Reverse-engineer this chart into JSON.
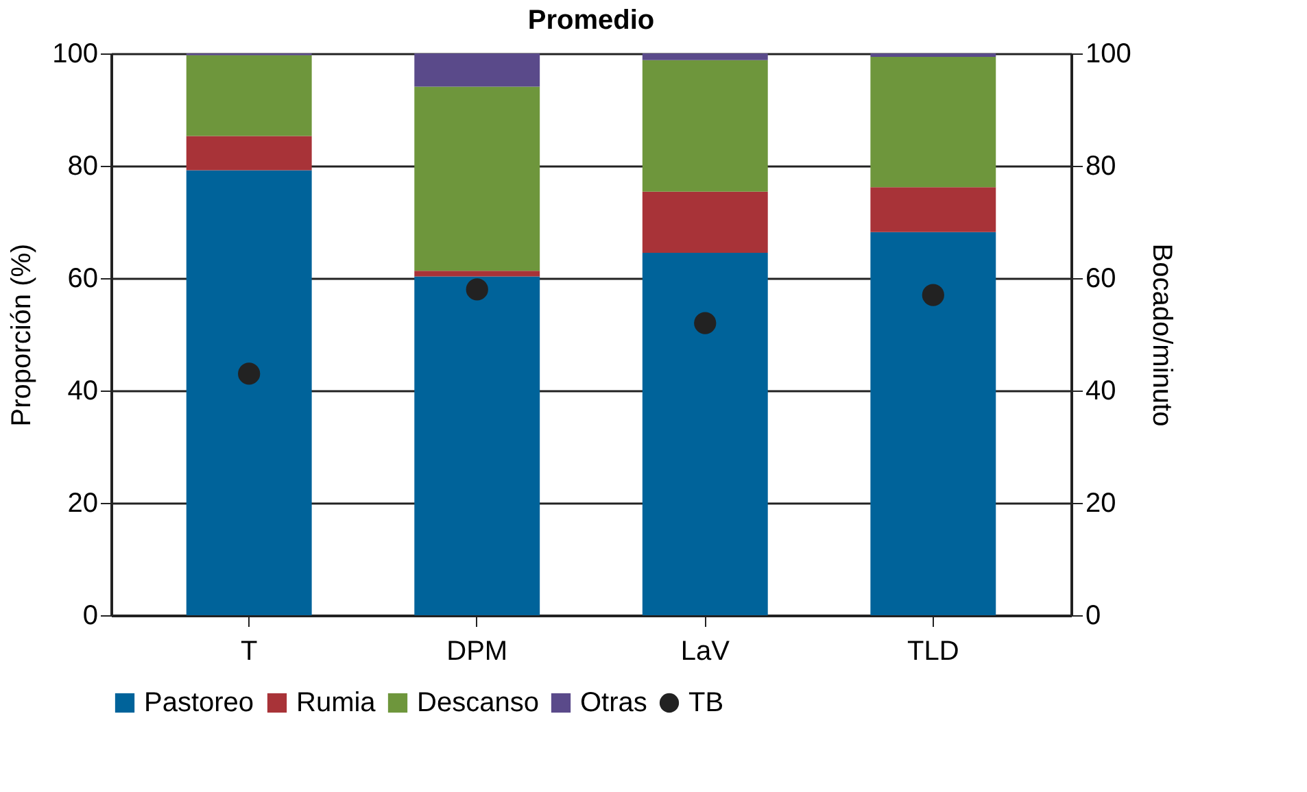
{
  "chart_data": {
    "type": "bar",
    "title": "Promedio",
    "ylabel": "Proporción (%)",
    "y2label": "Bocado/minuto",
    "categories": [
      "T",
      "DPM",
      "LaV",
      "TLD"
    ],
    "stacked": true,
    "series": [
      {
        "name": "Pastoreo",
        "color": "#00639a",
        "values": [
          79.2,
          60.3,
          64.5,
          68.2
        ]
      },
      {
        "name": "Rumia",
        "color": "#a83338",
        "values": [
          6.1,
          1.0,
          10.9,
          8.0
        ]
      },
      {
        "name": "Descanso",
        "color": "#6e963c",
        "values": [
          14.4,
          32.8,
          23.4,
          23.2
        ]
      },
      {
        "name": "Otras",
        "color": "#5a4a8a",
        "values": [
          0.3,
          5.9,
          1.2,
          0.6
        ]
      },
      {
        "name": "TB",
        "color": "#222222",
        "type": "scatter",
        "axis": "y2",
        "marker": "circle",
        "values": [
          43,
          58,
          52,
          57
        ]
      }
    ],
    "ylim": [
      0,
      100
    ],
    "yticks": [
      0,
      20,
      40,
      60,
      80,
      100
    ],
    "y2lim": [
      0,
      100
    ],
    "y2ticks": [
      0,
      20,
      40,
      60,
      80,
      100
    ],
    "grid": "y",
    "legend": "bottom"
  }
}
